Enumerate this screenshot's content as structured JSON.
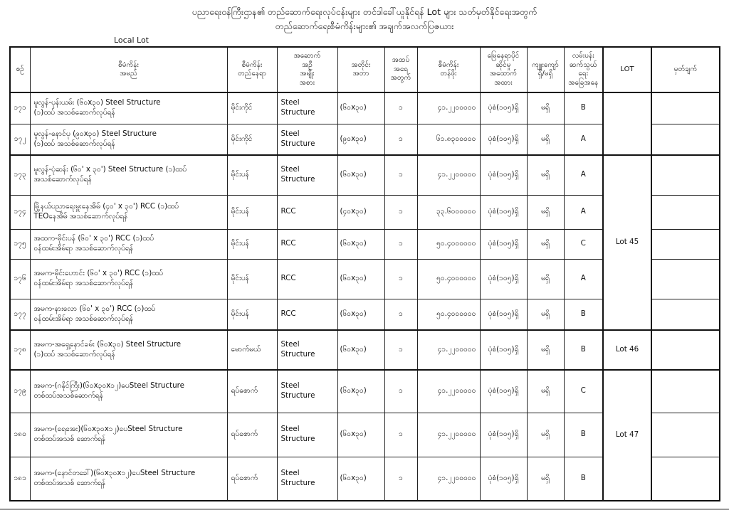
{
  "title": {
    "line1": "ပညာရေးဝန်ကြီးဌာန၏ တည်ဆောက်ရေးလုပ်ငန်းများ တင်ဒါခေါ်ယူနိုင်ရန် Lot များ သတ်မှတ်နိုင်ရေးအတွက်",
    "line2": "တည်ဆောက်ရေးစီမံကိန်းများ၏ အချက်အလက်ပြဇယား",
    "local_lot_label": "Local Lot"
  },
  "table": {
    "headers": [
      "စဉ်",
      "စီမံကိန်း\nအမည်",
      "စီမံကိန်း\nတည်နေရာ",
      "အဆောက်\nအဦ\nအမျိုး\nအစား",
      "အတိုင်း\nအတာ",
      "အထပ်\nအရေ\nအတွက်",
      "စီမံကိန်း\nတန်ဖိုး",
      "မြေနေရာပိုင်\nဆိုင်မှု\nအထောက်\nအထား",
      "ကျူးကျော်\nရှိ/မရှိ",
      "လမ်းပန်း\nဆက်သွယ်\nရေး\nအခြေအနေ",
      "LOT",
      "မှတ်ချက်"
    ],
    "rows": [
      {
        "no": "၁၇၁",
        "name": "မူလွန်-ပုန်းယမ်း (၆၀x၃၀) Steel Structure\n(၁)ထပ် အသစ်ဆောက်လုပ်ရန်",
        "location": "မိုင်းကိုင်",
        "type": "Steel Structure",
        "dimension": "(၆၀x၃၀)",
        "floors": "၁",
        "value": "၄၁.၂၂၀၀၀၀၀",
        "land_ownership": "ပုံစံ(၁၀၅)ရှိ",
        "encroachment": "မရှိ",
        "road_access": "B",
        "remark": ""
      },
      {
        "no": "၁၇၂",
        "name": "မူလွန်-နောင်ပု (၉၀x၃၀) Steel Structure\n(၁)ထပ် အသစ်ဆောက်လုပ်ရန်",
        "location": "မိုင်းကိုင်",
        "type": "Steel Structure",
        "dimension": "(၉၀x၃၀)",
        "floors": "၁",
        "value": "၆၁.၈၃၀၀၀၀၀",
        "land_ownership": "ပုံစံ(၁၀၅)ရှိ",
        "encroachment": "မရှိ",
        "road_access": "A",
        "remark": ""
      },
      {
        "no": "၁၇၃",
        "name": "မူလွန်-ပုံဆန်း (၆၀' x ၃၀') Steel Structure (၁)ထပ်\nအသစ်ဆောက်လုပ်ရန်",
        "location": "မိုင်းပန်",
        "type": "Steel Structure",
        "dimension": "(၆၀x၃၀)",
        "floors": "၁",
        "value": "၄၁.၂၂၀၀၀၀၀",
        "land_ownership": "ပုံစံ(၁၀၅)ရှိ",
        "encroachment": "မရှိ",
        "road_access": "A",
        "remark": ""
      },
      {
        "no": "၁၇၄",
        "name": "မြို့နယ်ပညာရေးမှူးနေအိမ် (၄၀' x ၃၀') RCC (၁)ထပ်\nTEOနေအိမ်  အသစ်ဆောက်လုပ်ရန်",
        "location": "မိုင်းပန်",
        "type": "RCC",
        "dimension": "(၄၀x၃၀)",
        "floors": "၁",
        "value": "၃၃.၆၀၀၀၀၀၀",
        "land_ownership": "ပုံစံ(၁၀၅)ရှိ",
        "encroachment": "မရှိ",
        "road_access": "A",
        "remark": ""
      },
      {
        "no": "၁၇၅",
        "name": "အထက-မိုင်းပန် (၆၀' x ၃၀') RCC (၁)ထပ်\nဝန်ထမ်းအိမ်ရာ အသစ်ဆောက်လုပ်ရန်",
        "location": "မိုင်းပန်",
        "type": "RCC",
        "dimension": "(၆၀x၃၀)",
        "floors": "၁",
        "value": "၅၀.၄၀၀၀၀၀၀",
        "land_ownership": "ပုံစံ(၁၀၅)ရှိ",
        "encroachment": "မရှိ",
        "road_access": "C",
        "remark": ""
      },
      {
        "no": "၁၇၆",
        "name": "အမက-မိုင်းဟောင်း (၆၀' x ၃၀') RCC (၁)ထပ်\nဝန်ထမ်းအိမ်ရာ  အသစ်ဆောက်လုပ်ရန်",
        "location": "မိုင်းပန်",
        "type": "RCC",
        "dimension": "(၆၀x၃၀)",
        "floors": "၁",
        "value": "၅၀.၄၀၀၀၀၀၀",
        "land_ownership": "ပုံစံ(၁၀၅)ရှိ",
        "encroachment": "မရှိ",
        "road_access": "A",
        "remark": ""
      },
      {
        "no": "၁၇၇",
        "name": "အမက-နားလော (၆၀' x ၃၀') RCC (၁)ထပ်\nဝန်ထမ်းအိမ်ရာ အသစ်ဆောက်လုပ်ရန်",
        "location": "မိုင်းပန်",
        "type": "RCC",
        "dimension": "(၆၀x၃၀)",
        "floors": "၁",
        "value": "၅၀.၄၀၀၀၀၀၀",
        "land_ownership": "ပုံစံ(၁၀၅)ရှိ",
        "encroachment": "မရှိ",
        "road_access": "B",
        "remark": ""
      },
      {
        "no": "၁၇၈",
        "name": "အမက-အရှေ့နောင်ခမ်း (၆၀x၃၀) Steel Structure\n(၁)ထပ် အသစ်ဆောက်လုပ်ရန်",
        "location": "မောက်မယ်",
        "type": "Steel Structure",
        "dimension": "(၆၀x၃၀)",
        "floors": "၁",
        "value": "၄၁.၂၂၀၀၀၀၀",
        "land_ownership": "ပုံစံ(၁၀၅)ရှိ",
        "encroachment": "မရှိ",
        "road_access": "B",
        "remark": ""
      },
      {
        "no": "၁၇၉",
        "name": "အမက-(ဂနိုင်ကြီး)(၆၀x၃၀x၁၂)ပေSteel Structure\nတစ်ထပ်အသစ်ဆောက်ရန်",
        "location": "ရပ်စောက်",
        "type": "Steel Structure",
        "dimension": "(၆၀x၃၀)",
        "floors": "၁",
        "value": "၄၁.၂၂၀၀၀၀၀",
        "land_ownership": "ပုံစံ(၁၀၅)ရှိ",
        "encroachment": "မရှိ",
        "road_access": "C",
        "remark": ""
      },
      {
        "no": "၁၈၀",
        "name": "အမက-(ရေအေး)(၆၀x၃၀x၁၂)ပေSteel Structure\nတစ်ထပ်အသစ် ဆောက်ရန်",
        "location": "ရပ်စောက်",
        "type": "Steel Structure",
        "dimension": "(၆၀x၃၀)",
        "floors": "၁",
        "value": "၄၁.၂၂၀၀၀၀၀",
        "land_ownership": "ပုံစံ(၁၀၅)ရှိ",
        "encroachment": "မရှိ",
        "road_access": "B",
        "remark": ""
      },
      {
        "no": "၁၈၁",
        "name": "အမက-(နောင်တခေါ်)(၆၀x၃၀x၁၂)ပေSteel Structure\nတစ်ထပ်အသစ် ဆောက်ရန်",
        "location": "ရပ်စောက်",
        "type": "Steel Structure",
        "dimension": "(၆၀x၃၀)",
        "floors": "၁",
        "value": "၄၁.၂၂၀၀၀၀၀",
        "land_ownership": "ပုံစံ(၁၀၅)ရှိ",
        "encroachment": "မရှိ",
        "road_access": "B",
        "remark": ""
      }
    ],
    "lot_groups": [
      {
        "label": "",
        "span": 2
      },
      {
        "label": "Lot 45",
        "span": 5
      },
      {
        "label": "Lot 46",
        "span": 1
      },
      {
        "label": "Lot 47",
        "span": 3
      }
    ]
  },
  "colors": {
    "background": "#ffffff",
    "text": "#1a1a1a",
    "border": "#1a1a1a",
    "bottom_rule": "#9a9a9a"
  }
}
